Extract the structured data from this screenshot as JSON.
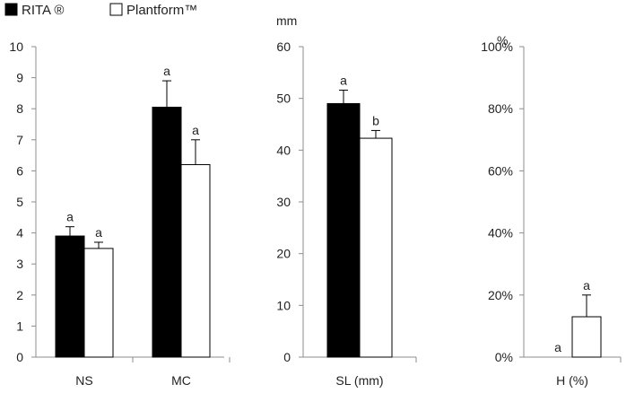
{
  "legend": [
    {
      "label": "RITA ®",
      "color": "#000000"
    },
    {
      "label": "Plantform™",
      "color": "#ffffff"
    }
  ],
  "chart_data": [
    {
      "type": "bar",
      "categories": [
        "NS",
        "MC"
      ],
      "series": [
        {
          "name": "RITA ®",
          "values": [
            3.9,
            8.05
          ],
          "errors": [
            0.3,
            0.85
          ],
          "labels": [
            "a",
            "a"
          ]
        },
        {
          "name": "Plantform™",
          "values": [
            3.5,
            6.2
          ],
          "errors": [
            0.2,
            0.8
          ],
          "labels": [
            "a",
            "a"
          ]
        }
      ],
      "unit": "",
      "ylim": [
        0,
        10
      ],
      "yticks": [
        "0",
        "1",
        "2",
        "3",
        "4",
        "5",
        "6",
        "7",
        "8",
        "9",
        "10"
      ]
    },
    {
      "type": "bar",
      "categories": [
        "SL (mm)"
      ],
      "series": [
        {
          "name": "RITA ®",
          "values": [
            49
          ],
          "errors": [
            2.6
          ],
          "labels": [
            "a"
          ]
        },
        {
          "name": "Plantform™",
          "values": [
            42.3
          ],
          "errors": [
            1.5
          ],
          "labels": [
            "b"
          ]
        }
      ],
      "unit": "mm",
      "ylim": [
        0,
        60
      ],
      "yticks": [
        "0",
        "10",
        "20",
        "30",
        "40",
        "50",
        "60"
      ]
    },
    {
      "type": "bar",
      "categories": [
        "H (%)"
      ],
      "series": [
        {
          "name": "RITA ®",
          "values": [
            0
          ],
          "errors": [
            0
          ],
          "labels": [
            "a"
          ]
        },
        {
          "name": "Plantform™",
          "values": [
            13
          ],
          "errors": [
            7
          ],
          "labels": [
            "a"
          ]
        }
      ],
      "unit": "%",
      "ylim": [
        0,
        100
      ],
      "yticks": [
        "0%",
        "20%",
        "40%",
        "60%",
        "80%",
        "100%"
      ]
    }
  ]
}
